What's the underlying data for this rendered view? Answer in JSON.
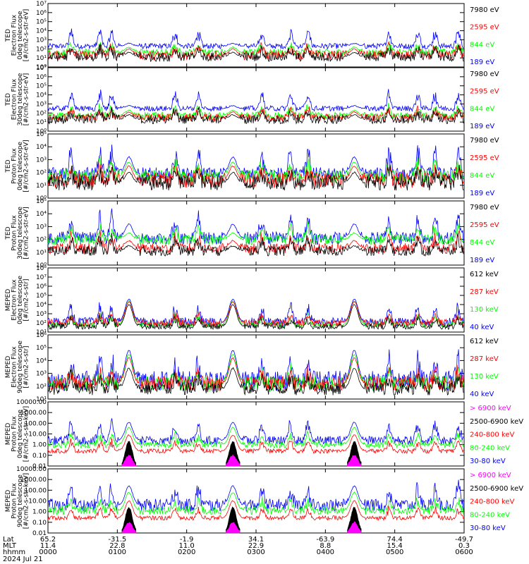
{
  "colors": {
    "blue": "#0000ff",
    "red": "#ff0000",
    "green": "#00ff00",
    "black": "#000000",
    "magenta": "#ff00ff"
  },
  "chart_data": [
    {
      "type": "line",
      "ylabel": [
        "TED",
        "Electron Flux",
        "0deg telescope",
        "[#/cm2-s-str-eV]"
      ],
      "y_scale": "log",
      "ylim": [
        1,
        10000000
      ],
      "y_tick_labels": [
        "10⁰",
        "10¹",
        "10²",
        "10³",
        "10⁴",
        "10⁵",
        "10⁶",
        "10⁷"
      ],
      "series": [
        {
          "name": "7980 eV",
          "color": "#000000",
          "baseline": 1.1,
          "noise": 0.5,
          "peak": 1.6
        },
        {
          "name": "2595 eV",
          "color": "#ff0000",
          "baseline": 1.3,
          "noise": 0.5,
          "peak": 2.0
        },
        {
          "name": "844 eV",
          "color": "#00ff00",
          "baseline": 1.6,
          "noise": 0.4,
          "peak": 2.2
        },
        {
          "name": "189 eV",
          "color": "#0000ff",
          "baseline": 2.3,
          "noise": 0.3,
          "peak": 2.6
        }
      ]
    },
    {
      "type": "line",
      "ylabel": [
        "TED",
        "Electron Flux",
        "30deg telescope",
        "[#/cm2-s-str-eV]"
      ],
      "y_scale": "log",
      "ylim": [
        1,
        10000000
      ],
      "y_tick_labels": [
        "10⁰",
        "10¹",
        "10²",
        "10³",
        "10⁴",
        "10⁵",
        "10⁶",
        "10⁷"
      ],
      "series": [
        {
          "name": "7980 eV",
          "color": "#000000",
          "baseline": 1.3,
          "noise": 0.5,
          "peak": 1.8
        },
        {
          "name": "2595 eV",
          "color": "#ff0000",
          "baseline": 1.5,
          "noise": 0.4,
          "peak": 2.1
        },
        {
          "name": "844 eV",
          "color": "#00ff00",
          "baseline": 1.7,
          "noise": 0.4,
          "peak": 2.3
        },
        {
          "name": "189 eV",
          "color": "#0000ff",
          "baseline": 2.5,
          "noise": 0.3,
          "peak": 2.8
        }
      ]
    },
    {
      "type": "line",
      "ylabel": [
        "TED",
        "Proton Flux",
        "0deg telescope",
        "[#/cm2-s-str-eV]"
      ],
      "y_scale": "log",
      "ylim": [
        1,
        100000
      ],
      "y_tick_labels": [
        "10⁰",
        "10¹",
        "10²",
        "10³",
        "10⁴",
        "10⁵"
      ],
      "series": [
        {
          "name": "7980 eV",
          "color": "#000000",
          "baseline": 1.2,
          "noise": 0.6,
          "peak": 2.0
        },
        {
          "name": "2595 eV",
          "color": "#ff0000",
          "baseline": 1.4,
          "noise": 0.6,
          "peak": 2.5
        },
        {
          "name": "844 eV",
          "color": "#00ff00",
          "baseline": 1.7,
          "noise": 0.5,
          "peak": 2.8
        },
        {
          "name": "189 eV",
          "color": "#0000ff",
          "baseline": 1.9,
          "noise": 0.5,
          "peak": 3.2
        }
      ]
    },
    {
      "type": "line",
      "ylabel": [
        "TED",
        "Proton Flux",
        "30deg telescope",
        "[#/cm2-s-str-eV]"
      ],
      "y_scale": "log",
      "ylim": [
        1,
        100000
      ],
      "y_tick_labels": [
        "10⁰",
        "10¹",
        "10²",
        "10³",
        "10⁴",
        "10⁵"
      ],
      "series": [
        {
          "name": "7980 eV",
          "color": "#000000",
          "baseline": 1.1,
          "noise": 0.4,
          "peak": 1.5
        },
        {
          "name": "2595 eV",
          "color": "#ff0000",
          "baseline": 1.3,
          "noise": 0.4,
          "peak": 1.9
        },
        {
          "name": "844 eV",
          "color": "#00ff00",
          "baseline": 2.0,
          "noise": 0.4,
          "peak": 2.5
        },
        {
          "name": "189 eV",
          "color": "#0000ff",
          "baseline": 2.1,
          "noise": 0.5,
          "peak": 3.2
        }
      ]
    },
    {
      "type": "line",
      "ylabel": [
        "MEPED",
        "Electron Flux",
        "0deg telescope",
        "[#/cm2-s-str]"
      ],
      "y_scale": "log",
      "ylim": [
        10,
        100000000
      ],
      "y_tick_labels": [
        "10¹",
        "10²",
        "10³",
        "10⁴",
        "10⁵",
        "10⁶",
        "10⁷",
        "10⁸"
      ],
      "series": [
        {
          "name": "612 keV",
          "color": "#000000",
          "baseline": 1.6,
          "noise": 0.3,
          "peak": 4.0
        },
        {
          "name": "287 keV",
          "color": "#ff0000",
          "baseline": 2.0,
          "noise": 0.4,
          "peak": 4.3
        },
        {
          "name": "130 keV",
          "color": "#00ff00",
          "baseline": 1.8,
          "noise": 0.3,
          "peak": 4.4
        },
        {
          "name": "40 keV",
          "color": "#0000ff",
          "baseline": 2.1,
          "noise": 0.5,
          "peak": 4.6
        }
      ]
    },
    {
      "type": "line",
      "ylabel": [
        "MEPED",
        "Electron Flux",
        "90deg telescope",
        "[#/cm2-s-str]"
      ],
      "y_scale": "log",
      "ylim": [
        10,
        1000000
      ],
      "y_tick_labels": [
        "10¹",
        "10²",
        "10³",
        "10⁴",
        "10⁵",
        "10⁶"
      ],
      "series": [
        {
          "name": "612 keV",
          "color": "#000000",
          "baseline": 1.8,
          "noise": 0.5,
          "peak": 3.4
        },
        {
          "name": "287 keV",
          "color": "#ff0000",
          "baseline": 2.2,
          "noise": 0.6,
          "peak": 4.2
        },
        {
          "name": "130 keV",
          "color": "#00ff00",
          "baseline": 2.2,
          "noise": 0.6,
          "peak": 4.5
        },
        {
          "name": "40 keV",
          "color": "#0000ff",
          "baseline": 2.4,
          "noise": 0.8,
          "peak": 4.8
        }
      ]
    },
    {
      "type": "line",
      "ylabel": [
        "MEPED",
        "Proton Flux",
        "0deg telescope",
        "[#/cm2-s-str-keV]"
      ],
      "y_scale": "log",
      "ylim": [
        0.01,
        10000
      ],
      "y_tick_labels": [
        "0.01",
        "0.10",
        "1.00",
        "10.00",
        "100.00",
        "1000.00",
        "10000.00"
      ],
      "series": [
        {
          "name": "> 6900 keV",
          "color": "#ff00ff",
          "baseline": -2.5,
          "noise": 0.0,
          "peak": -1.0
        },
        {
          "name": "2500-6900 keV",
          "color": "#000000",
          "baseline": -2.5,
          "noise": 0.0,
          "peak": 0.3
        },
        {
          "name": "240-800 keV",
          "color": "#ff0000",
          "baseline": -0.6,
          "noise": 0.2,
          "peak": 0.9
        },
        {
          "name": "80-240 keV",
          "color": "#00ff00",
          "baseline": 0.0,
          "noise": 0.3,
          "peak": 1.6
        },
        {
          "name": "30-80 keV",
          "color": "#0000ff",
          "baseline": 0.4,
          "noise": 0.4,
          "peak": 2.1
        }
      ]
    },
    {
      "type": "line",
      "ylabel": [
        "MEPED",
        "Proton Flux",
        "90deg telescope",
        "[#/cm2-s-str-keV]"
      ],
      "y_scale": "log",
      "ylim": [
        0.01,
        10000
      ],
      "y_tick_labels": [
        "0.01",
        "0.10",
        "1.00",
        "10.00",
        "100.00",
        "1000.00",
        "10000.00"
      ],
      "series": [
        {
          "name": "> 6900 keV",
          "color": "#ff00ff",
          "baseline": -2.5,
          "noise": 0.0,
          "peak": -1.0
        },
        {
          "name": "2500-6900 keV",
          "color": "#000000",
          "baseline": -2.5,
          "noise": 0.0,
          "peak": 0.4
        },
        {
          "name": "240-800 keV",
          "color": "#ff0000",
          "baseline": -0.6,
          "noise": 0.2,
          "peak": 1.0
        },
        {
          "name": "80-240 keV",
          "color": "#00ff00",
          "baseline": 0.1,
          "noise": 0.4,
          "peak": 1.8
        },
        {
          "name": "30-80 keV",
          "color": "#0000ff",
          "baseline": 0.6,
          "noise": 0.6,
          "peak": 2.4
        }
      ]
    }
  ],
  "x_axis": {
    "row_labels": [
      "Lat",
      "MLT",
      "hhmm"
    ],
    "ticks": [
      {
        "time": "0000",
        "lat": "65.2",
        "mlt": "11.4"
      },
      {
        "time": "0100",
        "lat": "-31.5",
        "mlt": "22.8"
      },
      {
        "time": "0200",
        "lat": "-1.9",
        "mlt": "11.0"
      },
      {
        "time": "0300",
        "lat": "34.1",
        "mlt": "22.9"
      },
      {
        "time": "0400",
        "lat": "-63.9",
        "mlt": "8.8"
      },
      {
        "time": "0500",
        "lat": "74.4",
        "mlt": "15.4"
      },
      {
        "time": "0600",
        "lat": "-49.7",
        "mlt": "0.3"
      }
    ],
    "range_minutes": [
      0,
      360
    ],
    "date": "2024 Jul 21"
  },
  "events": {
    "peaks_minutes": [
      70,
      160,
      265
    ],
    "bursts_minutes": [
      20,
      45,
      55,
      110,
      130,
      185,
      210,
      225,
      295,
      320,
      335,
      355
    ]
  }
}
